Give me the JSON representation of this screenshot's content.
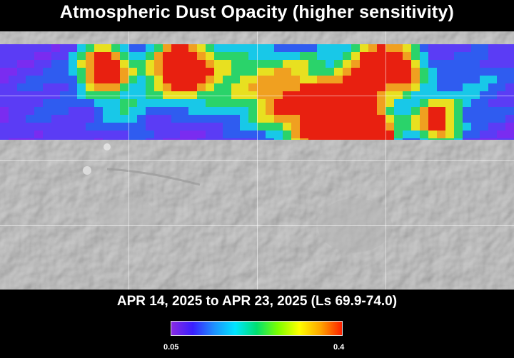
{
  "title": "Atmospheric Dust Opacity (higher sensitivity)",
  "date_range": "APR 14, 2025 to APR 23, 2025 (Ls 69.9-74.0)",
  "colorbar": {
    "min_label": "0.05",
    "max_label": "0.4",
    "colors": [
      "#8a2be2",
      "#3a1fff",
      "#1e90ff",
      "#00e5ff",
      "#00e070",
      "#7cff00",
      "#ffff00",
      "#ffa500",
      "#ff2000"
    ]
  },
  "map": {
    "terrain_color": "#c9c9c9",
    "data_coverage": "northern latitudes only",
    "colors": {
      "violet": "#7a2cf0",
      "indigo": "#5b3cf5",
      "blue": "#2f5cf0",
      "cyan": "#18c8e8",
      "green": "#2ad36a",
      "yellow": "#e8e020",
      "orange": "#f0a020",
      "red": "#e82010"
    }
  }
}
